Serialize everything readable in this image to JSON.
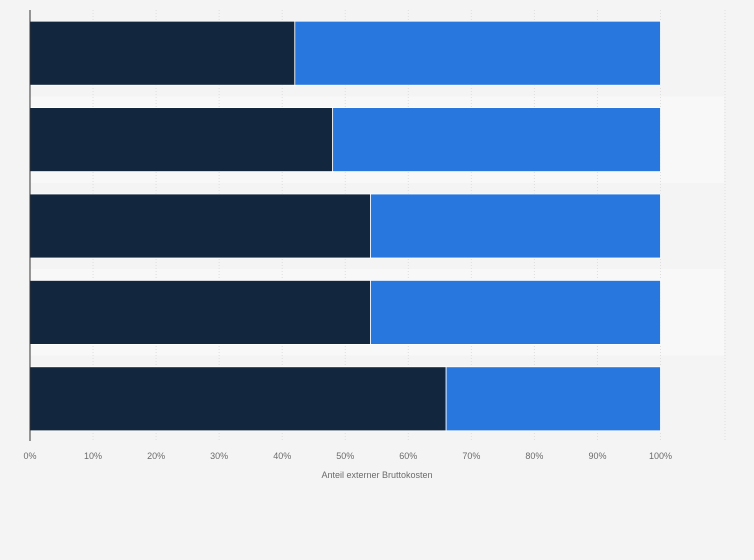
{
  "chart_data": {
    "type": "bar",
    "stacked": true,
    "orientation": "horizontal",
    "categories": [
      "",
      "",
      "",
      "",
      ""
    ],
    "series": [
      {
        "values": [
          42,
          48,
          54,
          54,
          66
        ],
        "color": "#12263d"
      },
      {
        "values": [
          58,
          52,
          46,
          46,
          34
        ],
        "color": "#2877de"
      }
    ],
    "xlabel": "Anteil externer Bruttokosten",
    "xlim": [
      0,
      100
    ],
    "xticks": [
      "0%",
      "10%",
      "20%",
      "30%",
      "40%",
      "50%",
      "60%",
      "70%",
      "80%",
      "90%",
      "100%"
    ],
    "grid": true,
    "legend": "none"
  }
}
